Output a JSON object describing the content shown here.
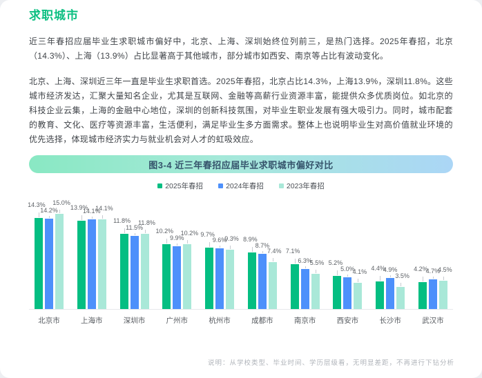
{
  "page": {
    "title": "求职城市",
    "paragraph1": "近三年春招应届毕业生求职城市偏好中，北京、上海、深圳始终位列前三，是热门选择。2025年春招，北京（14.3%）、上海（13.9%）占比显著高于其他城市，部分城市如西安、南京等占比有波动变化。",
    "paragraph2": "北京、上海、深圳近三年一直是毕业生求职首选。2025年春招，北京占比14.3%，上海13.9%，深圳11.8%。这些城市经济发达，汇聚大量知名企业，尤其是互联网、金融等高薪行业资源丰富，能提供众多优质岗位。如北京的科技企业云集，上海的金融中心地位，深圳的创新科技氛围，对毕业生职业发展有强大吸引力。同时，城市配套的教育、文化、医疗等资源丰富，生活便利，满足毕业生多方面需求。整体上也说明毕业生对高价值就业环境的优先选择，体现城市经济实力与就业机会对人才的虹吸效应。",
    "note": "说明：从学校类型、毕业时间、学历层级看，无明显差距，不再进行下钻分析"
  },
  "figure": {
    "banner_title": "图3-4 近三年春招应届毕业求职城市偏好对比"
  },
  "chart_data": {
    "type": "bar",
    "title": "图3-4 近三年春招应届毕业求职城市偏好对比",
    "categories": [
      "北京市",
      "上海市",
      "深圳市",
      "广州市",
      "杭州市",
      "成都市",
      "南京市",
      "西安市",
      "长沙市",
      "武汉市"
    ],
    "series": [
      {
        "name": "2025年春招",
        "color": "#04be82",
        "values": [
          14.3,
          13.9,
          11.8,
          10.2,
          9.7,
          8.9,
          7.1,
          5.2,
          4.4,
          4.2
        ]
      },
      {
        "name": "2024年春招",
        "color": "#4d90fb",
        "values": [
          14.2,
          14.1,
          11.5,
          9.9,
          9.6,
          8.7,
          6.3,
          5.0,
          4.9,
          4.7
        ]
      },
      {
        "name": "2023年春招",
        "color": "#a9e8d8",
        "values": [
          15.0,
          14.1,
          11.8,
          10.2,
          9.3,
          7.4,
          5.5,
          4.1,
          3.5,
          4.5
        ]
      }
    ],
    "unit": "%",
    "ylim": [
      0,
      15
    ],
    "grid": false,
    "legend_position": "top",
    "value_labels": true
  },
  "colors": {
    "title_green": "#0bbf81",
    "banner_gradient_left": "#89e8c3",
    "banner_gradient_mid": "#a5e9d9",
    "banner_gradient_right": "#abd6f6",
    "banner_text": "#35536b",
    "axis_line": "#e6e8eb"
  }
}
